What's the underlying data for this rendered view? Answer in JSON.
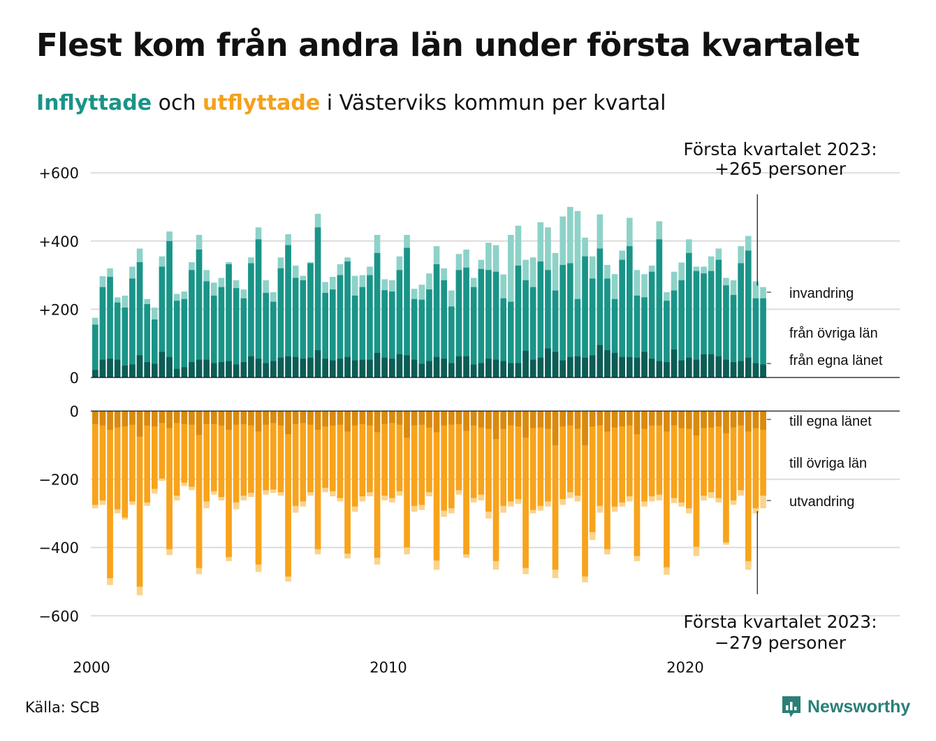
{
  "title": "Flest kom från andra län under första kvartalet",
  "subtitle": {
    "part1": "Inflyttade",
    "part2": " och ",
    "part3": "utflyttade",
    "part4": " i Västerviks kommun per kvartal"
  },
  "source": "Källa: SCB",
  "brand": "Newsworthy",
  "colors": {
    "in_own": "#0d5c55",
    "in_other": "#1a9488",
    "in_immig": "#8dd2c8",
    "out_own": "#d98a10",
    "out_other": "#f8a31c",
    "out_emig": "#fbd38c"
  },
  "annotations": {
    "top_line1": "Första kvartalet 2023:",
    "top_line2": "+265 personer",
    "bottom_line1": "Första kvartalet 2023:",
    "bottom_line2": "−279 personer"
  },
  "chart_data": {
    "type": "bar",
    "stacked": true,
    "x_start": "2000 Q1",
    "x_end": "2023 Q1",
    "xticks": [
      "2000",
      "2010",
      "2020"
    ],
    "yticks_top": [
      "+600",
      "+400",
      "+200",
      "0"
    ],
    "yticks_bottom": [
      "0",
      "−200",
      "−400",
      "−600"
    ],
    "ylim_top": [
      0,
      600
    ],
    "ylim_bottom": [
      -600,
      0
    ],
    "grid": true,
    "series_labels": {
      "in_immig": "invandring",
      "in_other": "från övriga län",
      "in_own": "från egna länet",
      "out_own": "till egna länet",
      "out_other": "till övriga län",
      "out_emig": "utvandring"
    },
    "inflow_total": [
      175,
      297,
      320,
      235,
      240,
      325,
      378,
      230,
      205,
      355,
      428,
      245,
      252,
      338,
      418,
      315,
      278,
      292,
      338,
      285,
      258,
      352,
      440,
      285,
      250,
      352,
      420,
      328,
      298,
      338,
      480,
      280,
      295,
      332,
      352,
      298,
      300,
      325,
      418,
      288,
      285,
      355,
      418,
      260,
      272,
      305,
      385,
      320,
      255,
      362,
      375,
      292,
      345,
      395,
      388,
      302,
      418,
      445,
      345,
      352,
      455,
      440,
      365,
      472,
      500,
      488,
      410,
      355,
      478,
      330,
      303,
      372,
      468,
      315,
      303,
      328,
      458,
      250,
      310,
      337,
      405,
      325,
      325,
      355,
      378,
      292,
      285,
      385,
      415,
      282,
      265
    ],
    "inflow_other": [
      155,
      265,
      295,
      220,
      205,
      290,
      338,
      215,
      170,
      325,
      400,
      225,
      230,
      315,
      375,
      282,
      240,
      265,
      332,
      262,
      232,
      335,
      405,
      248,
      222,
      320,
      388,
      292,
      285,
      335,
      440,
      248,
      258,
      300,
      340,
      240,
      265,
      300,
      365,
      256,
      252,
      315,
      380,
      230,
      228,
      258,
      332,
      285,
      208,
      315,
      322,
      265,
      318,
      315,
      310,
      232,
      222,
      328,
      285,
      265,
      340,
      315,
      255,
      330,
      335,
      230,
      355,
      290,
      378,
      290,
      230,
      345,
      385,
      240,
      235,
      310,
      405,
      225,
      255,
      285,
      365,
      312,
      305,
      312,
      345,
      270,
      242,
      335,
      372,
      232,
      232
    ],
    "inflow_own": [
      22,
      52,
      55,
      52,
      35,
      38,
      65,
      45,
      40,
      75,
      60,
      25,
      30,
      45,
      52,
      52,
      42,
      45,
      48,
      38,
      45,
      62,
      55,
      42,
      48,
      58,
      62,
      60,
      55,
      58,
      80,
      55,
      50,
      55,
      60,
      50,
      52,
      52,
      72,
      58,
      55,
      68,
      65,
      52,
      40,
      48,
      60,
      55,
      42,
      62,
      62,
      38,
      42,
      55,
      52,
      48,
      42,
      42,
      78,
      52,
      58,
      85,
      75,
      50,
      60,
      62,
      58,
      65,
      95,
      80,
      72,
      60,
      60,
      58,
      75,
      55,
      48,
      45,
      82,
      50,
      58,
      52,
      68,
      68,
      62,
      52,
      45,
      48,
      58,
      42,
      38
    ],
    "outflow_total": [
      -285,
      -275,
      -510,
      -300,
      -318,
      -275,
      -540,
      -278,
      -242,
      -205,
      -422,
      -262,
      -220,
      -232,
      -478,
      -285,
      -245,
      -262,
      -440,
      -288,
      -262,
      -252,
      -472,
      -245,
      -240,
      -248,
      -500,
      -298,
      -280,
      -248,
      -420,
      -238,
      -250,
      -265,
      -432,
      -295,
      -265,
      -250,
      -450,
      -262,
      -268,
      -248,
      -420,
      -295,
      -290,
      -250,
      -465,
      -310,
      -300,
      -245,
      -430,
      -268,
      -262,
      -315,
      -465,
      -298,
      -280,
      -272,
      -478,
      -300,
      -292,
      -280,
      -490,
      -275,
      -255,
      -265,
      -502,
      -378,
      -298,
      -420,
      -295,
      -280,
      -265,
      -440,
      -280,
      -265,
      -262,
      -480,
      -270,
      -280,
      -300,
      -425,
      -262,
      -255,
      -268,
      -392,
      -275,
      -248,
      -465,
      -300,
      -285
    ],
    "outflow_other_end": [
      -275,
      -262,
      -490,
      -288,
      -312,
      -265,
      -515,
      -268,
      -228,
      -198,
      -405,
      -248,
      -210,
      -222,
      -460,
      -265,
      -235,
      -252,
      -428,
      -268,
      -248,
      -240,
      -450,
      -232,
      -230,
      -238,
      -485,
      -278,
      -265,
      -238,
      -405,
      -225,
      -235,
      -255,
      -418,
      -280,
      -250,
      -238,
      -430,
      -248,
      -255,
      -235,
      -400,
      -278,
      -275,
      -238,
      -438,
      -292,
      -285,
      -232,
      -420,
      -255,
      -245,
      -295,
      -440,
      -278,
      -265,
      -258,
      -460,
      -290,
      -278,
      -265,
      -465,
      -258,
      -238,
      -248,
      -485,
      -355,
      -278,
      -405,
      -280,
      -268,
      -250,
      -425,
      -265,
      -250,
      -245,
      -458,
      -255,
      -268,
      -285,
      -398,
      -248,
      -238,
      -255,
      -385,
      -262,
      -232,
      -440,
      -285,
      -248
    ],
    "outflow_own": [
      -38,
      -42,
      -55,
      -48,
      -45,
      -40,
      -75,
      -42,
      -45,
      -35,
      -50,
      -35,
      -38,
      -40,
      -70,
      -38,
      -38,
      -42,
      -55,
      -40,
      -38,
      -42,
      -60,
      -40,
      -35,
      -42,
      -68,
      -38,
      -35,
      -40,
      -55,
      -45,
      -42,
      -40,
      -60,
      -42,
      -38,
      -42,
      -62,
      -38,
      -35,
      -40,
      -78,
      -42,
      -40,
      -48,
      -62,
      -42,
      -40,
      -38,
      -58,
      -42,
      -48,
      -52,
      -82,
      -52,
      -42,
      -45,
      -78,
      -50,
      -48,
      -52,
      -100,
      -45,
      -42,
      -52,
      -100,
      -45,
      -42,
      -60,
      -48,
      -45,
      -42,
      -68,
      -52,
      -42,
      -42,
      -60,
      -42,
      -50,
      -52,
      -72,
      -50,
      -48,
      -45,
      -65,
      -48,
      -42,
      -60,
      -50,
      -55
    ]
  }
}
